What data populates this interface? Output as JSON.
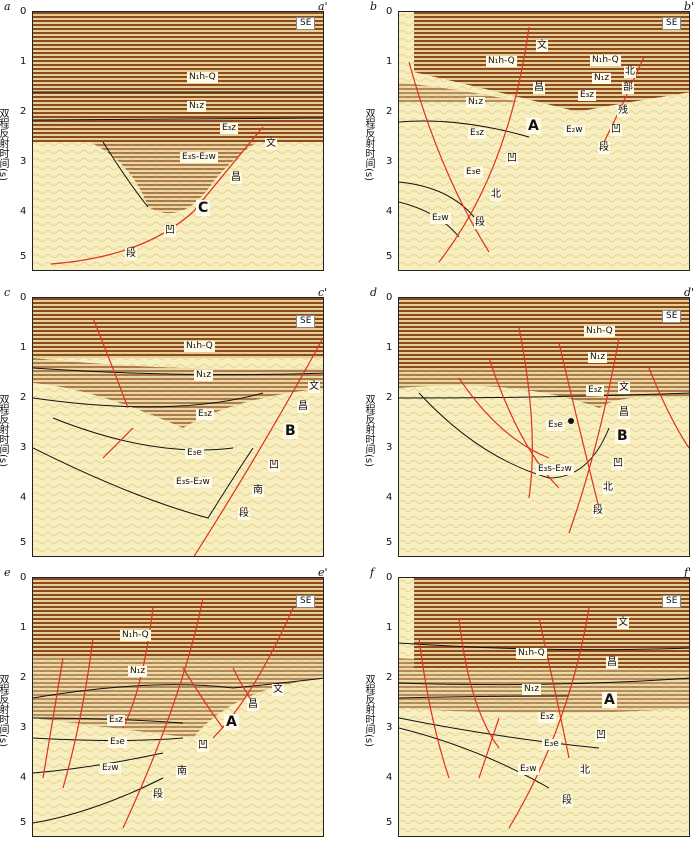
{
  "y_axis_title": "双程反射时间(s)",
  "direction_label": "SE",
  "panels": [
    {
      "id": "a",
      "left_label": "a",
      "right_label": "a'",
      "ticks": [
        "0",
        "1",
        "2",
        "3",
        "4",
        "5"
      ],
      "formations": [
        "N₁h-Q",
        "N₁z",
        "E₃z",
        "E₃s-E₂w"
      ],
      "cn_labels": [
        "文",
        "昌",
        "凹",
        "段"
      ],
      "big_label": "C"
    },
    {
      "id": "b",
      "left_label": "b",
      "right_label": "b'",
      "ticks": [
        "0",
        "1",
        "2",
        "3",
        "4",
        "5"
      ],
      "formations": [
        "N₁h-Q",
        "N₁z",
        "E₃z",
        "E₃e",
        "E₂w",
        "E₃z",
        "N₁z",
        "E₂w",
        "N₁h-Q"
      ],
      "cn_labels": [
        "文",
        "昌",
        "凹",
        "北",
        "段",
        "北",
        "部",
        "残",
        "凹",
        "段"
      ],
      "big_label": "A"
    },
    {
      "id": "c",
      "left_label": "c",
      "right_label": "c'",
      "ticks": [
        "0",
        "1",
        "2",
        "3",
        "4",
        "5"
      ],
      "formations": [
        "N₁h-Q",
        "N₁z",
        "E₃z",
        "E₃e",
        "E₃s-E₂w"
      ],
      "cn_labels": [
        "文",
        "昌",
        "凹",
        "南",
        "段"
      ],
      "big_label": "B"
    },
    {
      "id": "d",
      "left_label": "d",
      "right_label": "d'",
      "ticks": [
        "0",
        "1",
        "2",
        "3",
        "4",
        "5"
      ],
      "formations": [
        "N₁h-Q",
        "N₁z",
        "E₃z",
        "E₃e",
        "E₃s-E₂w"
      ],
      "cn_labels": [
        "文",
        "昌",
        "凹",
        "北",
        "段"
      ],
      "big_label": "B"
    },
    {
      "id": "e",
      "left_label": "e",
      "right_label": "e'",
      "ticks": [
        "0",
        "1",
        "2",
        "3",
        "4",
        "5"
      ],
      "formations": [
        "N₁h-Q",
        "N₁z",
        "E₃z",
        "E₃e",
        "E₂w"
      ],
      "cn_labels": [
        "文",
        "昌",
        "凹",
        "南",
        "段"
      ],
      "big_label": "A"
    },
    {
      "id": "f",
      "left_label": "f",
      "right_label": "f'",
      "ticks": [
        "0",
        "1",
        "2",
        "3",
        "4",
        "5"
      ],
      "formations": [
        "N₁h-Q",
        "N₁z",
        "E₃z",
        "E₃e",
        "E₂w"
      ],
      "cn_labels": [
        "文",
        "昌",
        "凹",
        "北",
        "段"
      ],
      "big_label": "A"
    }
  ],
  "colors": {
    "fault": "#e0301e",
    "horizon": "#111111",
    "background": "#f7efc0",
    "stripe_dark": "#7a3a1a",
    "stripe_mid": "#c9a26a"
  }
}
